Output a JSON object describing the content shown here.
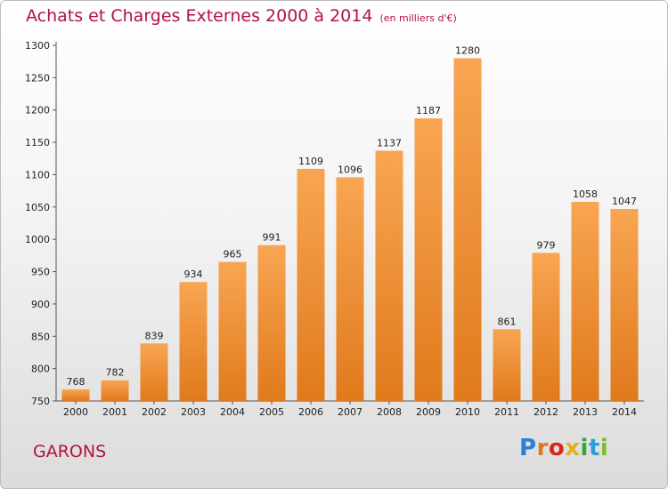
{
  "header": {
    "title": "Achats et Charges Externes 2000 à 2014",
    "subtitle": "(en milliers d'€)"
  },
  "footer": {
    "commune": "GARONS",
    "logo_letters": [
      "P",
      "r",
      "o",
      "x",
      "i",
      "t",
      "i"
    ],
    "logo_colors": [
      "#2a7fd4",
      "#e2781e",
      "#d9261c",
      "#e2b21e",
      "#3aa535",
      "#2a9fd6",
      "#7bbd2a"
    ]
  },
  "colors": {
    "bar_light": "#f8a552",
    "bar_dark": "#e07a1c",
    "title": "#b0143c"
  },
  "chart_data": {
    "type": "bar",
    "title": "Achats et Charges Externes 2000 à 2014",
    "subtitle": "(en milliers d'€)",
    "categories": [
      "2000",
      "2001",
      "2002",
      "2003",
      "2004",
      "2005",
      "2006",
      "2007",
      "2008",
      "2009",
      "2010",
      "2011",
      "2012",
      "2013",
      "2014"
    ],
    "values": [
      768,
      782,
      839,
      934,
      965,
      991,
      1109,
      1096,
      1137,
      1187,
      1280,
      861,
      979,
      1058,
      1047
    ],
    "ylim": [
      750,
      1300
    ],
    "yticks": [
      750,
      800,
      850,
      900,
      950,
      1000,
      1050,
      1100,
      1150,
      1200,
      1250,
      1300
    ],
    "grid": false,
    "legend": "none"
  }
}
